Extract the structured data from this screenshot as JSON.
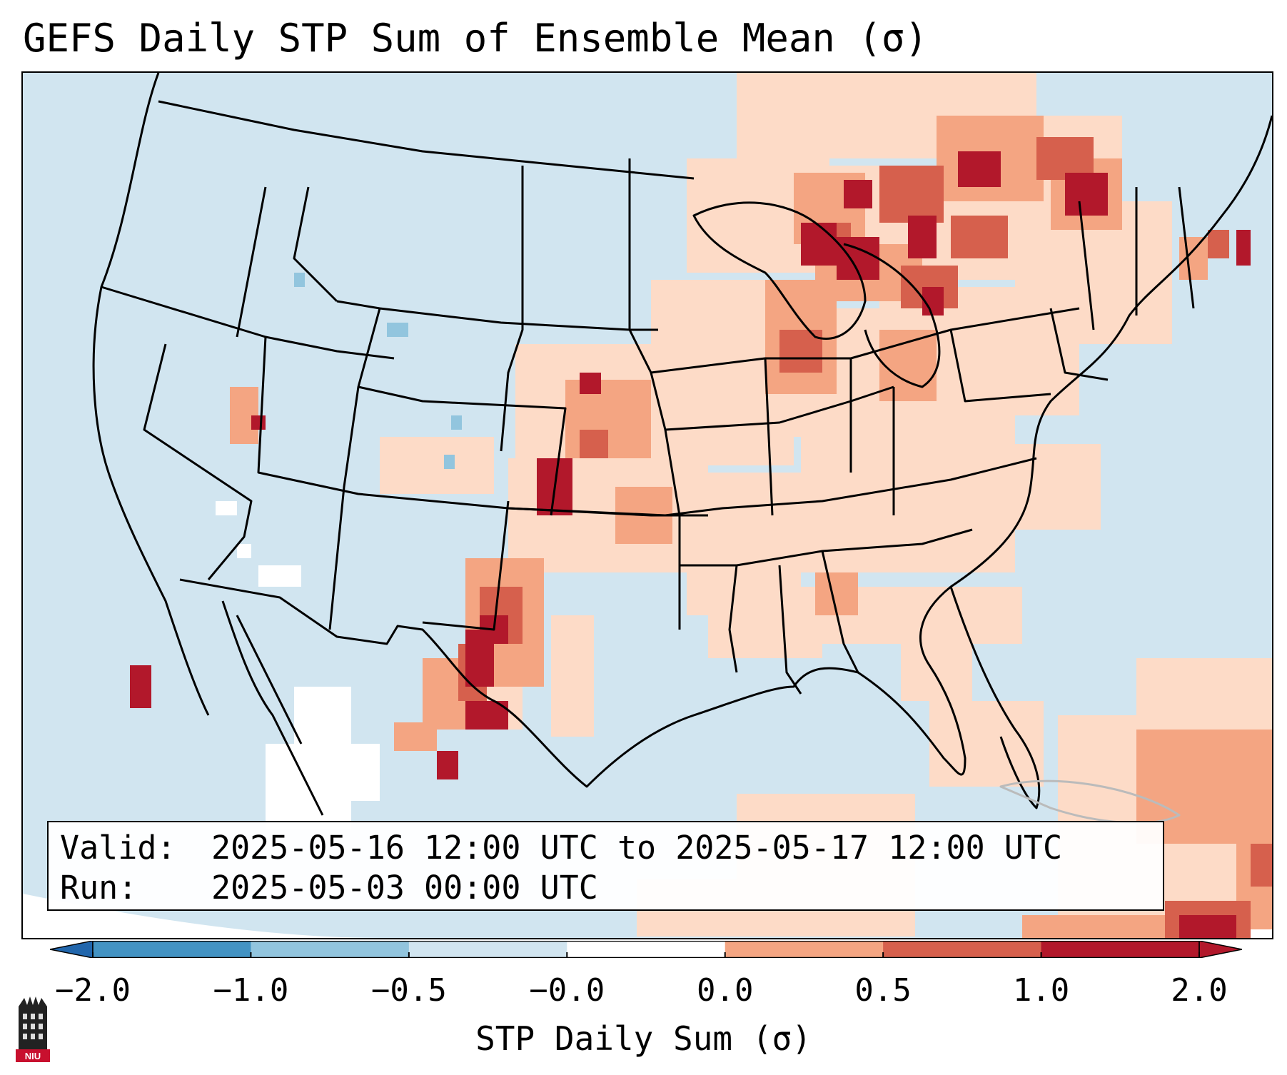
{
  "title": "GEFS Daily STP Sum of Ensemble Mean (σ)",
  "info": {
    "valid_label": "Valid:",
    "valid_value": "2025-05-16 12:00 UTC to 2025-05-17 12:00 UTC",
    "run_label": "Run:",
    "run_value": "2025-05-03 00:00 UTC"
  },
  "colorbar": {
    "label": "STP Daily Sum (σ)",
    "ticks": [
      "−2.0",
      "−1.0",
      "−0.5",
      "−0.0",
      "0.0",
      "0.5",
      "1.0",
      "2.0"
    ],
    "bin_colors": [
      "#4393c3",
      "#92c5de",
      "#d1e5f0",
      "#ffffff",
      "#fddbc7",
      "#f4a582",
      "#d6604d",
      "#b2182b"
    ],
    "extend": "both"
  },
  "legend": {
    "background": "#d1e5f0",
    "water_band": "#ffffff",
    "borders": "#000000"
  },
  "logo": {
    "text": "NIU",
    "icon": "university-building-icon",
    "color": "#c8102e"
  }
}
